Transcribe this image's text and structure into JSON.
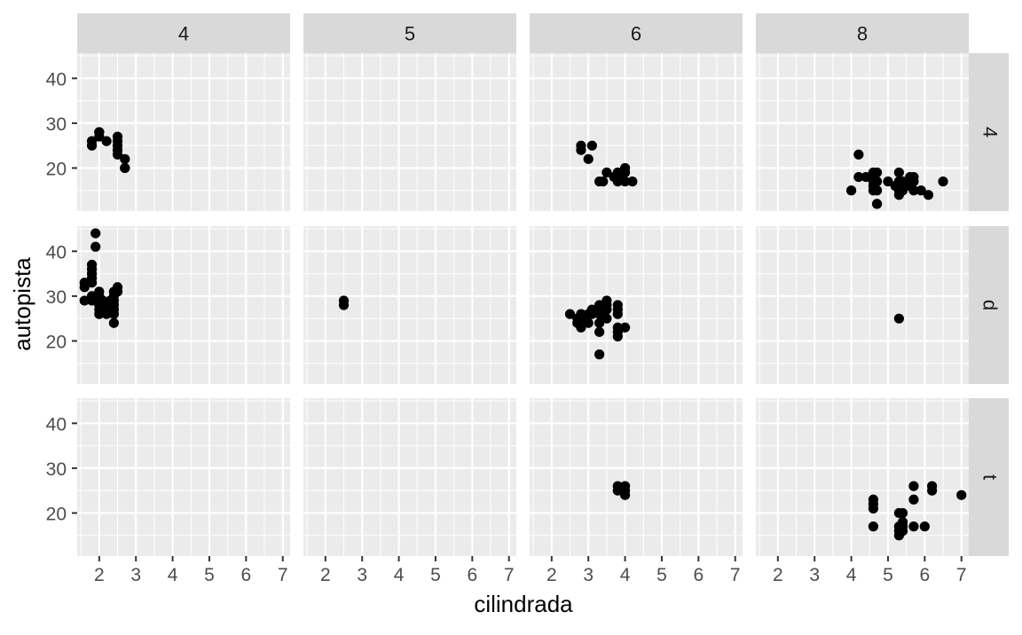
{
  "chart_data": {
    "type": "scatter",
    "xlabel": "cilindrada",
    "ylabel": "autopista",
    "col_facet_labels": [
      "4",
      "5",
      "6",
      "8"
    ],
    "row_facet_labels": [
      "4",
      "d",
      "t"
    ],
    "x_ticks": [
      "2",
      "3",
      "4",
      "5",
      "6",
      "7"
    ],
    "y_ticks": [
      "20",
      "30",
      "40"
    ],
    "xlim": [
      1.4,
      7.2
    ],
    "ylim": [
      10.4,
      45.6
    ],
    "grid": true,
    "colors": {
      "panel": "#EBEBEB",
      "strip": "#D9D9D9",
      "point": "#000000",
      "grid": "#FFFFFF",
      "text": "#4D4D4D"
    },
    "panels": [
      {
        "row": "4",
        "col": "4",
        "points": [
          [
            1.8,
            26
          ],
          [
            1.8,
            25
          ],
          [
            2.0,
            28
          ],
          [
            2.0,
            27
          ],
          [
            2.0,
            28
          ],
          [
            2.2,
            26
          ],
          [
            2.5,
            27
          ],
          [
            2.5,
            26
          ],
          [
            2.5,
            25
          ],
          [
            2.5,
            24
          ],
          [
            2.5,
            23
          ],
          [
            2.7,
            22
          ],
          [
            2.7,
            20
          ],
          [
            2.7,
            20
          ]
        ]
      },
      {
        "row": "4",
        "col": "5",
        "points": []
      },
      {
        "row": "4",
        "col": "6",
        "points": [
          [
            2.8,
            25
          ],
          [
            2.8,
            24
          ],
          [
            3.0,
            22
          ],
          [
            3.1,
            25
          ],
          [
            3.3,
            17
          ],
          [
            3.4,
            17
          ],
          [
            3.5,
            19
          ],
          [
            3.7,
            18
          ],
          [
            3.8,
            19
          ],
          [
            3.9,
            18
          ],
          [
            4.0,
            20
          ],
          [
            4.0,
            19
          ],
          [
            4.0,
            17
          ],
          [
            4.2,
            17
          ],
          [
            3.8,
            17
          ]
        ]
      },
      {
        "row": "4",
        "col": "8",
        "points": [
          [
            4.0,
            15
          ],
          [
            4.2,
            23
          ],
          [
            4.2,
            18
          ],
          [
            4.4,
            18
          ],
          [
            4.6,
            19
          ],
          [
            4.6,
            18
          ],
          [
            4.6,
            17
          ],
          [
            4.6,
            16
          ],
          [
            4.6,
            15
          ],
          [
            4.7,
            19
          ],
          [
            4.7,
            17
          ],
          [
            4.7,
            15
          ],
          [
            4.7,
            12
          ],
          [
            4.7,
            12
          ],
          [
            5.0,
            17
          ],
          [
            5.2,
            16
          ],
          [
            5.3,
            19
          ],
          [
            5.3,
            17
          ],
          [
            5.3,
            15
          ],
          [
            5.3,
            14
          ],
          [
            5.4,
            17
          ],
          [
            5.4,
            16
          ],
          [
            5.4,
            15
          ],
          [
            5.6,
            18
          ],
          [
            5.6,
            16
          ],
          [
            5.7,
            18
          ],
          [
            5.7,
            17
          ],
          [
            5.7,
            15
          ],
          [
            5.9,
            15
          ],
          [
            6.1,
            14
          ],
          [
            6.5,
            17
          ]
        ]
      },
      {
        "row": "d",
        "col": "4",
        "points": [
          [
            1.6,
            33
          ],
          [
            1.6,
            32
          ],
          [
            1.6,
            29
          ],
          [
            1.8,
            37
          ],
          [
            1.8,
            36
          ],
          [
            1.8,
            35
          ],
          [
            1.8,
            34
          ],
          [
            1.8,
            33
          ],
          [
            1.8,
            30
          ],
          [
            1.8,
            29
          ],
          [
            1.9,
            44
          ],
          [
            1.9,
            41
          ],
          [
            1.9,
            29
          ],
          [
            2.0,
            31
          ],
          [
            2.0,
            30
          ],
          [
            2.0,
            29
          ],
          [
            2.0,
            28
          ],
          [
            2.0,
            27
          ],
          [
            2.0,
            26
          ],
          [
            2.2,
            27
          ],
          [
            2.2,
            26
          ],
          [
            2.2,
            28
          ],
          [
            2.4,
            31
          ],
          [
            2.4,
            30
          ],
          [
            2.4,
            29
          ],
          [
            2.4,
            28
          ],
          [
            2.4,
            27
          ],
          [
            2.4,
            26
          ],
          [
            2.4,
            24
          ],
          [
            2.5,
            32
          ],
          [
            2.5,
            31
          ],
          [
            2.1,
            29
          ],
          [
            2.3,
            29
          ]
        ]
      },
      {
        "row": "d",
        "col": "5",
        "points": [
          [
            2.5,
            29
          ],
          [
            2.5,
            28
          ]
        ]
      },
      {
        "row": "d",
        "col": "6",
        "points": [
          [
            2.5,
            26
          ],
          [
            2.7,
            25
          ],
          [
            2.7,
            24
          ],
          [
            2.8,
            26
          ],
          [
            2.8,
            25
          ],
          [
            2.8,
            23
          ],
          [
            3.0,
            26
          ],
          [
            3.0,
            24
          ],
          [
            3.1,
            27
          ],
          [
            3.1,
            26
          ],
          [
            3.3,
            28
          ],
          [
            3.3,
            27
          ],
          [
            3.3,
            26
          ],
          [
            3.3,
            24
          ],
          [
            3.3,
            22
          ],
          [
            3.3,
            17
          ],
          [
            3.5,
            29
          ],
          [
            3.5,
            28
          ],
          [
            3.5,
            27
          ],
          [
            3.5,
            25
          ],
          [
            3.8,
            28
          ],
          [
            3.8,
            27
          ],
          [
            3.8,
            26
          ],
          [
            3.8,
            23
          ],
          [
            3.8,
            22
          ],
          [
            3.8,
            21
          ],
          [
            4.0,
            23
          ]
        ]
      },
      {
        "row": "d",
        "col": "8",
        "points": [
          [
            5.3,
            25
          ]
        ]
      },
      {
        "row": "t",
        "col": "4",
        "points": []
      },
      {
        "row": "t",
        "col": "5",
        "points": []
      },
      {
        "row": "t",
        "col": "6",
        "points": [
          [
            3.8,
            26
          ],
          [
            3.8,
            25
          ],
          [
            4.0,
            26
          ],
          [
            4.0,
            25
          ],
          [
            4.0,
            24
          ]
        ]
      },
      {
        "row": "t",
        "col": "8",
        "points": [
          [
            4.6,
            23
          ],
          [
            4.6,
            22
          ],
          [
            4.6,
            21
          ],
          [
            4.6,
            17
          ],
          [
            5.3,
            20
          ],
          [
            5.3,
            17
          ],
          [
            5.3,
            16
          ],
          [
            5.3,
            15
          ],
          [
            5.4,
            20
          ],
          [
            5.4,
            18
          ],
          [
            5.4,
            17
          ],
          [
            5.4,
            16
          ],
          [
            5.7,
            26
          ],
          [
            5.7,
            23
          ],
          [
            5.7,
            17
          ],
          [
            6.0,
            17
          ],
          [
            6.2,
            26
          ],
          [
            6.2,
            25
          ],
          [
            7.0,
            24
          ]
        ]
      }
    ]
  }
}
